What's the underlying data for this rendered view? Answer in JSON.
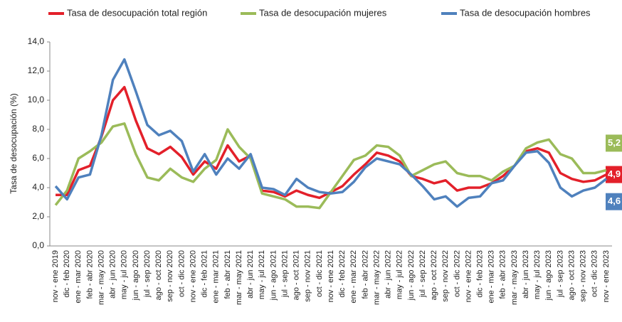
{
  "chart_data": {
    "type": "line",
    "y_label": "Tasa de desocupación (%)",
    "categories": [
      "nov - ene 2019",
      "dic - feb 2020",
      "ene - mar 2020",
      "feb - abr 2020",
      "mar - may 2020",
      "abr - jun 2020",
      "may - jul 2020",
      "jun - ago 2020",
      "jul - sep 2020",
      "ago - oct 2020",
      "sep - nov 2020",
      "oct - dic 2020",
      "nov - ene 2020",
      "dic - feb 2021",
      "ene - mar 2021",
      "feb - abr 2021",
      "mar - may 2021",
      "abr - jun 2021",
      "may - jul 2021",
      "jun - ago 2021",
      "jul - sep 2021",
      "ago - oct 2021",
      "sep - nov 2021",
      "oct - dic 2021",
      "nov - ene 2021",
      "dic - feb 2022",
      "ene - mar 2022",
      "feb - abr 2022",
      "mar - may 2022",
      "abr - jun 2022",
      "may - jul 2022",
      "jun - ago 2022",
      "jul - sep 2022",
      "ago - oct 2022",
      "sep - nov 2022",
      "oct - dic 2022",
      "nov - ene 2022",
      "dic - feb 2023",
      "ene - mar 2023",
      "feb - abr 2023",
      "mar - may 2023",
      "abr - jun 2023",
      "may - jul 2023",
      "jun - ago 2023",
      "jul - sep 2023",
      "ago - oct 2023",
      "sep - nov 2023",
      "oct - dic 2023",
      "nov - ene 2023"
    ],
    "series": [
      {
        "name": "Tasa de desocupación total región",
        "color": "#e3202a",
        "values": [
          3.5,
          3.5,
          5.2,
          5.5,
          7.5,
          10.0,
          10.9,
          8.6,
          6.7,
          6.3,
          6.8,
          6.1,
          4.9,
          5.8,
          5.3,
          6.9,
          5.8,
          6.2,
          3.8,
          3.7,
          3.4,
          3.8,
          3.5,
          3.3,
          3.7,
          4.1,
          4.9,
          5.6,
          6.4,
          6.2,
          5.8,
          4.8,
          4.6,
          4.3,
          4.5,
          3.8,
          4.0,
          4.0,
          4.3,
          4.8,
          5.5,
          6.5,
          6.7,
          6.4,
          5.0,
          4.6,
          4.4,
          4.5,
          4.9
        ],
        "value_labels": [
          null,
          null,
          null,
          null,
          null,
          null,
          null,
          null,
          null,
          null,
          null,
          null,
          null,
          null,
          null,
          null,
          null,
          null,
          null,
          null,
          null,
          null,
          null,
          null,
          null,
          null,
          null,
          null,
          null,
          null,
          null,
          null,
          null,
          null,
          null,
          null,
          null,
          null,
          null,
          null,
          null,
          null,
          null,
          null,
          null,
          null,
          null,
          null,
          "4,9"
        ]
      },
      {
        "name": "Tasa de desocupación mujeres",
        "color": "#9bbb59",
        "values": [
          2.8,
          3.8,
          6.0,
          6.5,
          7.1,
          8.2,
          8.4,
          6.3,
          4.7,
          4.5,
          5.3,
          4.7,
          4.4,
          5.3,
          5.9,
          8.0,
          6.8,
          6.0,
          3.6,
          3.4,
          3.2,
          2.7,
          2.7,
          2.6,
          3.7,
          4.8,
          5.9,
          6.2,
          6.9,
          6.8,
          6.2,
          4.8,
          5.2,
          5.6,
          5.8,
          5.0,
          4.8,
          4.8,
          4.5,
          5.1,
          5.5,
          6.7,
          7.1,
          7.3,
          6.3,
          6.0,
          5.0,
          5.0,
          5.2
        ],
        "value_labels": [
          null,
          null,
          null,
          null,
          null,
          null,
          null,
          null,
          null,
          null,
          null,
          null,
          null,
          null,
          null,
          null,
          null,
          null,
          null,
          null,
          null,
          null,
          null,
          null,
          null,
          null,
          null,
          null,
          null,
          null,
          null,
          null,
          null,
          null,
          null,
          null,
          null,
          null,
          null,
          null,
          null,
          null,
          null,
          null,
          null,
          null,
          null,
          null,
          "5,2"
        ]
      },
      {
        "name": "Tasa de desocupación hombres",
        "color": "#4f81bd",
        "values": [
          4.1,
          3.2,
          4.7,
          4.9,
          7.6,
          11.4,
          12.8,
          10.6,
          8.3,
          7.6,
          7.9,
          7.2,
          5.1,
          6.3,
          4.9,
          6.0,
          5.3,
          6.3,
          4.0,
          3.9,
          3.5,
          4.6,
          4.0,
          3.7,
          3.6,
          3.7,
          4.4,
          5.4,
          6.0,
          5.8,
          5.6,
          4.9,
          4.1,
          3.2,
          3.4,
          2.7,
          3.3,
          3.4,
          4.3,
          4.5,
          5.5,
          6.4,
          6.5,
          5.7,
          4.0,
          3.4,
          3.8,
          4.0,
          4.6
        ],
        "value_labels": [
          null,
          null,
          null,
          null,
          null,
          null,
          null,
          null,
          null,
          null,
          null,
          null,
          null,
          null,
          null,
          null,
          null,
          null,
          null,
          null,
          null,
          null,
          null,
          null,
          null,
          null,
          null,
          null,
          null,
          null,
          null,
          null,
          null,
          null,
          null,
          null,
          null,
          null,
          null,
          null,
          null,
          null,
          null,
          null,
          null,
          null,
          null,
          null,
          "4,6"
        ]
      }
    ],
    "ylim": [
      0,
      14
    ],
    "yticks": [
      {
        "value": 0,
        "label": "0,0"
      },
      {
        "value": 2,
        "label": "2,0"
      },
      {
        "value": 4,
        "label": "4,0"
      },
      {
        "value": 6,
        "label": "6,0"
      },
      {
        "value": 8,
        "label": "8,0"
      },
      {
        "value": 10,
        "label": "10,0"
      },
      {
        "value": 12,
        "label": "12,0"
      },
      {
        "value": 14,
        "label": "14,0"
      }
    ],
    "grid": false
  }
}
